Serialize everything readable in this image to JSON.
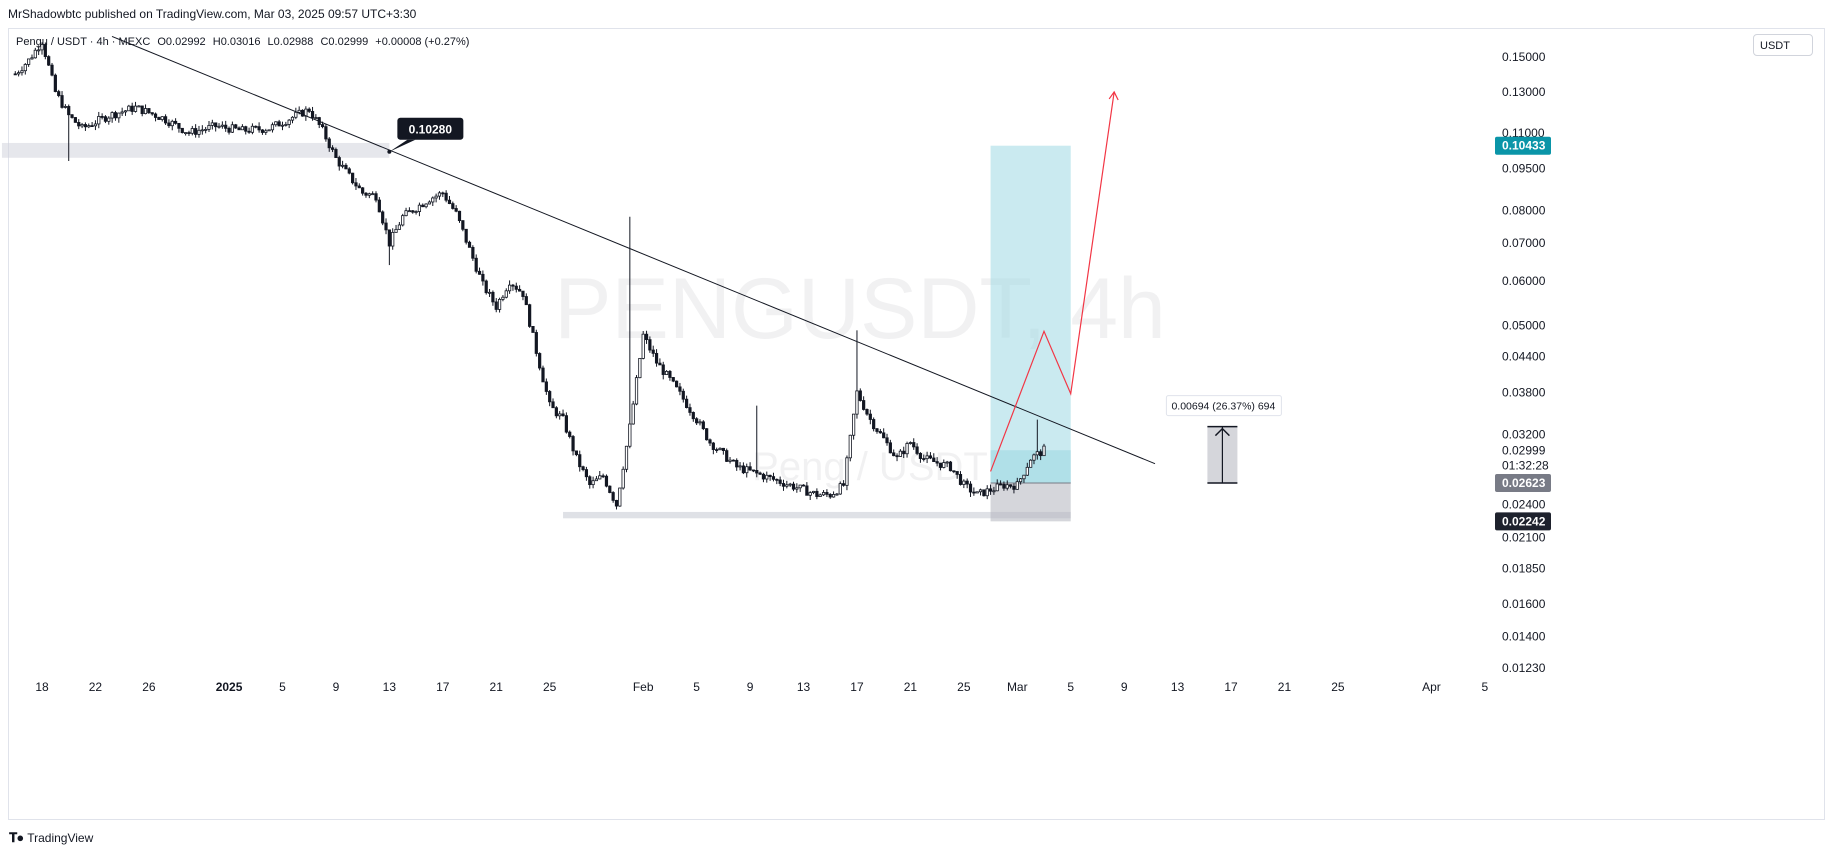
{
  "header": {
    "publisher": "MrShadowbtc published on TradingView.com, Mar 03, 2025 09:57 UTC+3:30"
  },
  "symbol_bar": {
    "symbol": "Pengu / USDT · 4h · MEXC",
    "open": "O0.02992",
    "high": "H0.03016",
    "low": "L0.02988",
    "close": "C0.02999",
    "change": "+0.00008 (+0.27%)"
  },
  "currency": "USDT",
  "watermark": {
    "main": "PENGUSDT, 4h",
    "sub": "Peng / USDT"
  },
  "footer": {
    "brand": "TradingView"
  },
  "colors": {
    "candles": "#131722",
    "trendline": "#131722",
    "projection": "#f23645",
    "target_zone": "#9fd9e3",
    "stop_zone": "#b2b5be",
    "support_zone": "#d1d4dc",
    "target_badge": "#0a95a8",
    "current_badge": "#787b86",
    "stop_badge": "#1e222d"
  },
  "chart_data": {
    "type": "candlestick",
    "timeframe": "4h",
    "y_scale": "log",
    "ylim": [
      0.0118,
      0.158
    ],
    "y_ticks": [
      "0.15000",
      "0.13000",
      "0.11000",
      "0.09500",
      "0.08000",
      "0.07000",
      "0.06000",
      "0.05000",
      "0.04400",
      "0.03800",
      "0.03200",
      "0.02400",
      "0.02100",
      "0.01850",
      "0.01600",
      "0.01400",
      "0.01230"
    ],
    "x_ticks": [
      "18",
      "22",
      "26",
      "2025",
      "5",
      "9",
      "13",
      "17",
      "21",
      "25",
      "Feb",
      "5",
      "9",
      "13",
      "17",
      "21",
      "25",
      "Mar",
      "5",
      "9",
      "13",
      "17",
      "21",
      "25",
      "Apr",
      "5"
    ],
    "price_badges": [
      {
        "label": "0.10433",
        "kind": "target"
      },
      {
        "label": "0.02999",
        "kind": "last"
      },
      {
        "label": "01:32:28",
        "kind": "countdown"
      },
      {
        "label": "0.02623",
        "kind": "entry"
      },
      {
        "label": "0.02242",
        "kind": "stop"
      }
    ],
    "price_path_trace": [
      [
        "Dec 16",
        0.14
      ],
      [
        "Dec 17",
        0.148
      ],
      [
        "Dec 18",
        0.16
      ],
      [
        "Dec 19",
        0.13
      ],
      [
        "Dec 20",
        0.118
      ],
      [
        "Dec 21",
        0.112
      ],
      [
        "Dec 23",
        0.118
      ],
      [
        "Dec 25",
        0.122
      ],
      [
        "Dec 27",
        0.117
      ],
      [
        "Dec 29",
        0.11
      ],
      [
        "Dec 31",
        0.113
      ],
      [
        "Jan 2",
        0.111
      ],
      [
        "Jan 4",
        0.112
      ],
      [
        "Jan 6",
        0.118
      ],
      [
        "Jan 7",
        0.121
      ],
      [
        "Jan 8",
        0.111
      ],
      [
        "Jan 9",
        0.099
      ],
      [
        "Jan 10",
        0.092
      ],
      [
        "Jan 11",
        0.086
      ],
      [
        "Jan 12",
        0.085
      ],
      [
        "Jan 13",
        0.07
      ],
      [
        "Jan 14",
        0.078
      ],
      [
        "Jan 16",
        0.084
      ],
      [
        "Jan 17",
        0.086
      ],
      [
        "Jan 18",
        0.079
      ],
      [
        "Jan 20",
        0.059
      ],
      [
        "Jan 21",
        0.054
      ],
      [
        "Jan 22",
        0.06
      ],
      [
        "Jan 23",
        0.057
      ],
      [
        "Jan 24",
        0.045
      ],
      [
        "Jan 25",
        0.036
      ],
      [
        "Jan 26",
        0.034
      ],
      [
        "Jan 27",
        0.029
      ],
      [
        "Jan 28",
        0.026
      ],
      [
        "Jan 29",
        0.027
      ],
      [
        "Jan 30",
        0.024
      ],
      [
        "Jan 31",
        0.033
      ],
      [
        "Feb 1",
        0.048
      ],
      [
        "Feb 2",
        0.043
      ],
      [
        "Feb 3",
        0.04
      ],
      [
        "Feb 4",
        0.037
      ],
      [
        "Feb 5",
        0.034
      ],
      [
        "Feb 6",
        0.031
      ],
      [
        "Feb 8",
        0.028
      ],
      [
        "Feb 10",
        0.027
      ],
      [
        "Feb 12",
        0.026
      ],
      [
        "Feb 14",
        0.025
      ],
      [
        "Feb 15",
        0.025
      ],
      [
        "Feb 16",
        0.026
      ],
      [
        "Feb 17",
        0.038
      ],
      [
        "Feb 18",
        0.034
      ],
      [
        "Feb 20",
        0.029
      ],
      [
        "Feb 21",
        0.031
      ],
      [
        "Feb 22",
        0.029
      ],
      [
        "Feb 24",
        0.028
      ],
      [
        "Feb 25",
        0.026
      ],
      [
        "Feb 26",
        0.025
      ],
      [
        "Feb 28",
        0.026
      ],
      [
        "Mar 1",
        0.026
      ],
      [
        "Mar 2",
        0.029
      ],
      [
        "Mar 3",
        0.03
      ]
    ],
    "annotations": {
      "descending_trendline": {
        "from": [
          "Dec 18",
          0.17
        ],
        "to": [
          "Mar 8",
          0.0357
        ]
      },
      "resistance_box": {
        "x_from": "Dec 15",
        "x_to": "Jan 13",
        "y_from": 0.0993,
        "y_to": 0.1055
      },
      "resistance_label": {
        "text": "0.10280",
        "at": [
          "Jan 13",
          0.1018
        ]
      },
      "support_box": {
        "x_from": "Jan 26",
        "x_to": "Mar 5",
        "y_from": 0.0227,
        "y_to": 0.0233
      },
      "long_position": {
        "x_from": "Feb 27",
        "x_to": "Mar 5",
        "entry": 0.02623,
        "target": 0.10433,
        "stop": 0.02242,
        "last": 0.02999
      },
      "projection_path": [
        [
          "Feb 27",
          0.0275
        ],
        [
          "Mar 3",
          0.0488
        ],
        [
          "Mar 5",
          0.0378
        ],
        [
          "Mar 9",
          0.13
        ]
      ],
      "measure_tool": {
        "text": "0.00694 (26.37%) 694",
        "x": "Mar 18",
        "from": 0.02623,
        "to": 0.03317
      }
    }
  }
}
